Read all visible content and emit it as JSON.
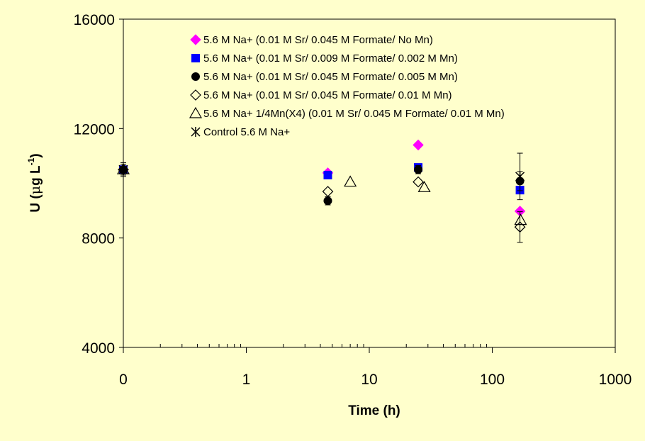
{
  "chart_data": {
    "type": "scatter",
    "xlabel": "Time (h)",
    "ylabel": {
      "base": "U (",
      "mu": "μ",
      "g": "g L",
      "sup": "-1",
      "close": ")"
    },
    "x_scale": "log",
    "x_tick_labels": [
      "0",
      "1",
      "10",
      "100",
      "1000"
    ],
    "y_ticks": [
      4000,
      8000,
      12000,
      16000
    ],
    "y_tick_labels": [
      "4000",
      "8000",
      "12000",
      "16000"
    ],
    "ylim": [
      4000,
      16000
    ],
    "grid": false,
    "legend_position": "top-center",
    "series": [
      {
        "name": "5.6 M Na+ (0.01 M Sr/ 0.045 M Formate/ No Mn)",
        "marker": "diamond-filled",
        "color": "#FF00FF",
        "points": [
          {
            "x": 0,
            "y": 10500
          },
          {
            "x": 4.6,
            "y": 10380
          },
          {
            "x": 25,
            "y": 11400
          },
          {
            "x": 168,
            "y": 8980
          }
        ]
      },
      {
        "name": "5.6 M Na+ (0.01 M Sr/ 0.009 M Formate/ 0.002 M Mn)",
        "marker": "square-filled",
        "color": "#0000FF",
        "points": [
          {
            "x": 0,
            "y": 10500
          },
          {
            "x": 4.6,
            "y": 10300
          },
          {
            "x": 25,
            "y": 10580
          },
          {
            "x": 168,
            "y": 9750
          }
        ]
      },
      {
        "name": "5.6 M Na+ (0.01 M Sr/ 0.045 M Formate/ 0.005 M Mn)",
        "marker": "circle-filled",
        "color": "#000000",
        "points": [
          {
            "x": 0,
            "y": 10500,
            "err": 200
          },
          {
            "x": 4.6,
            "y": 9360,
            "err": 150
          },
          {
            "x": 25,
            "y": 10500,
            "err": 150
          },
          {
            "x": 168,
            "y": 10080,
            "err": 350
          }
        ]
      },
      {
        "name": "5.6 M Na+ (0.01 M Sr/ 0.045 M Formate/ 0.01 M Mn)",
        "marker": "diamond-open",
        "color": "#000000",
        "points": [
          {
            "x": 0,
            "y": 10500
          },
          {
            "x": 4.6,
            "y": 9700
          },
          {
            "x": 25,
            "y": 10050
          },
          {
            "x": 168,
            "y": 8400,
            "err": 560
          }
        ]
      },
      {
        "name": "5.6 M Na+ 1/4Mn(X4) (0.01 M Sr/ 0.045 M Formate/ 0.01 M Mn)",
        "marker": "triangle-open",
        "color": "#000000",
        "points": [
          {
            "x": 0,
            "y": 10500
          },
          {
            "x": 7,
            "y": 10050
          },
          {
            "x": 28,
            "y": 9850
          },
          {
            "x": 170,
            "y": 8650
          }
        ]
      },
      {
        "name": "Control 5.6 M Na+",
        "marker": "asterisk",
        "color": "#000000",
        "points": [
          {
            "x": 0,
            "y": 10500,
            "err": 250
          },
          {
            "x": 168,
            "y": 10250,
            "err": 850
          }
        ]
      }
    ]
  }
}
